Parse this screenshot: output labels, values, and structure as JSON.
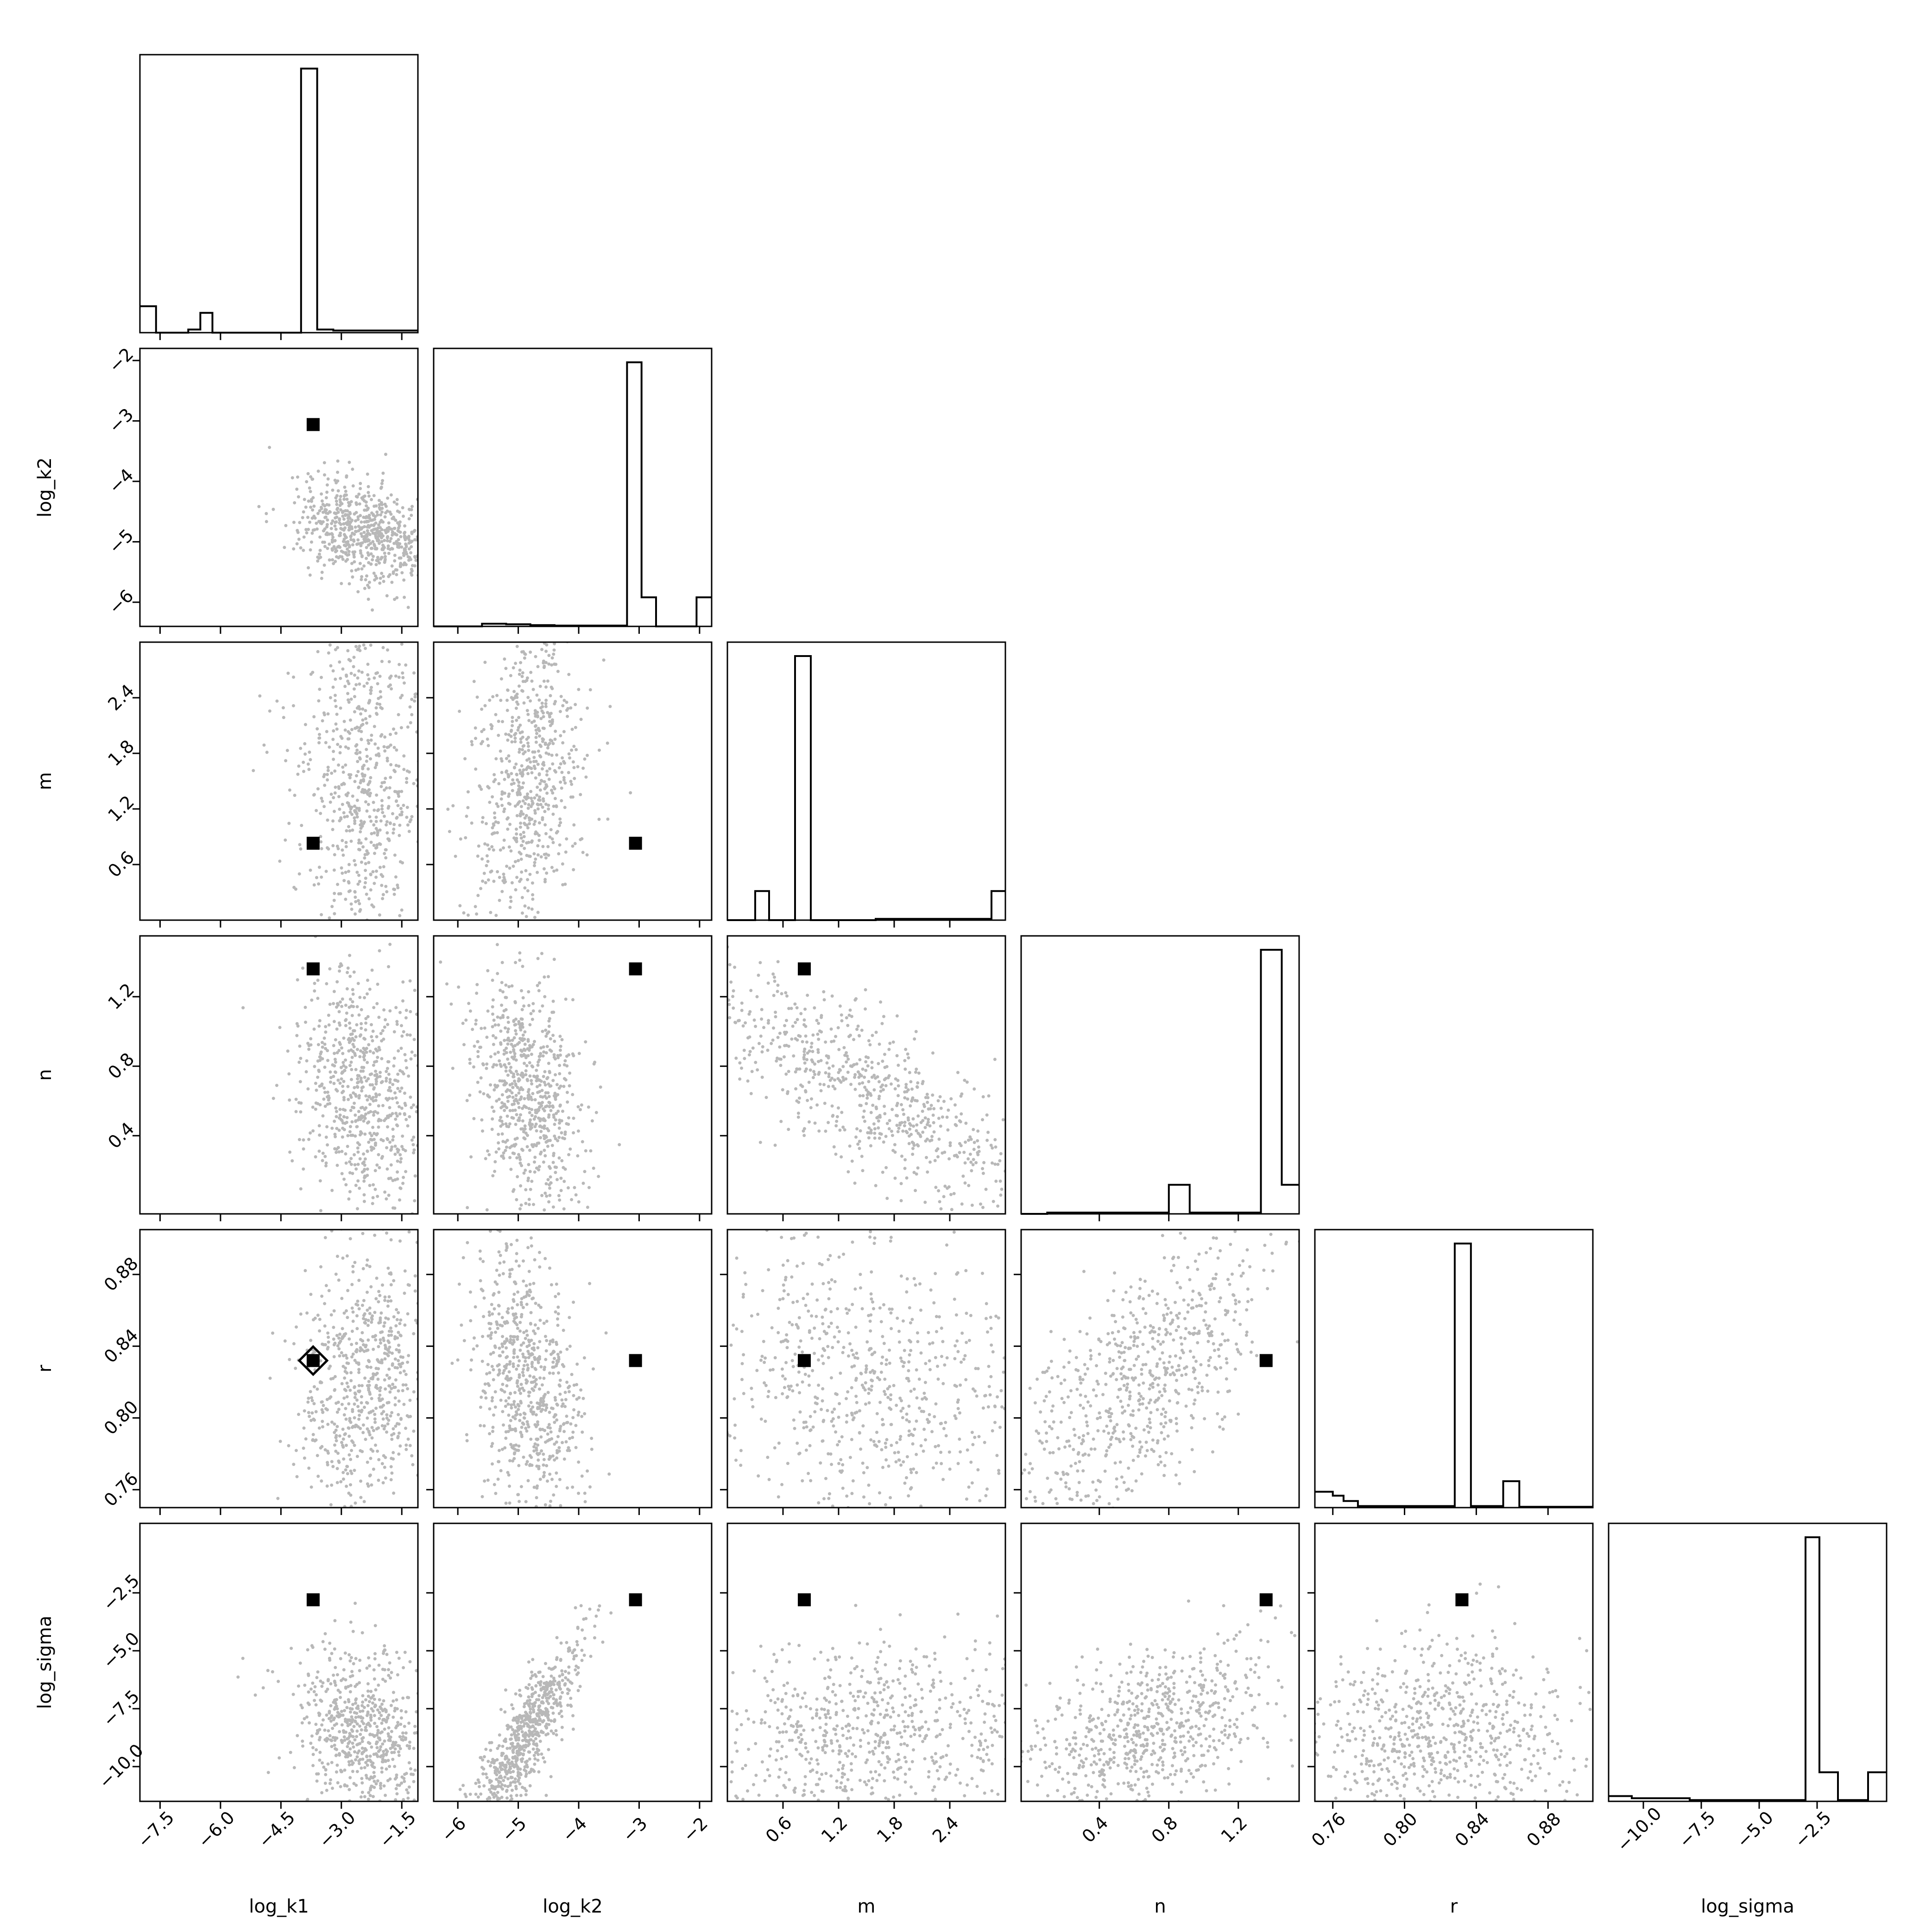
{
  "chart_data": {
    "type": "scatter",
    "subtype": "corner-plot",
    "color": "#000000",
    "parameters": [
      {
        "name": "log_k1",
        "range": [
          -8.0,
          -1.1
        ],
        "ticks": [
          -7.5,
          -6.0,
          -4.5,
          -3.0,
          -1.5
        ],
        "tick_labels": [
          "−7.5",
          "−6.0",
          "−4.5",
          "−3.0",
          "−1.5"
        ],
        "marker": -3.7
      },
      {
        "name": "log_k2",
        "range": [
          -6.4,
          -1.8
        ],
        "ticks": [
          -6,
          -5,
          -4,
          -3,
          -2
        ],
        "tick_labels": [
          "−6",
          "−5",
          "−4",
          "−3",
          "−2"
        ],
        "marker": -3.06
      },
      {
        "name": "m",
        "range": [
          0.0,
          3.0
        ],
        "ticks": [
          0.6,
          1.2,
          1.8,
          2.4
        ],
        "tick_labels": [
          "0.6",
          "1.2",
          "1.8",
          "2.4"
        ],
        "marker": 0.83
      },
      {
        "name": "n",
        "range": [
          -0.05,
          1.55
        ],
        "ticks": [
          0.4,
          0.8,
          1.2
        ],
        "tick_labels": [
          "0.4",
          "0.8",
          "1.2"
        ],
        "marker": 1.36
      },
      {
        "name": "r",
        "range": [
          0.75,
          0.905
        ],
        "ticks": [
          0.76,
          0.8,
          0.84,
          0.88
        ],
        "tick_labels": [
          "0.76",
          "0.80",
          "0.84",
          "0.88"
        ],
        "marker": 0.832
      },
      {
        "name": "log_sigma",
        "range": [
          -11.5,
          0.5
        ],
        "ticks": [
          -10.0,
          -7.5,
          -5.0,
          -2.5
        ],
        "tick_labels": [
          "−10.0",
          "−7.5",
          "−5.0",
          "−2.5"
        ],
        "marker": -2.8
      }
    ],
    "histograms": [
      {
        "parameter": "log_k1",
        "bins": [
          [
            -8.0,
            -7.6,
            0.1
          ],
          [
            -7.6,
            -6.8,
            0
          ],
          [
            -6.8,
            -6.5,
            0.012
          ],
          [
            -6.5,
            -6.2,
            0.075
          ],
          [
            -6.2,
            -4.0,
            0
          ],
          [
            -4.0,
            -3.6,
            1.0
          ],
          [
            -3.6,
            -3.2,
            0.012
          ],
          [
            -3.2,
            -1.1,
            0.008
          ]
        ]
      },
      {
        "parameter": "log_k2",
        "bins": [
          [
            -6.4,
            -5.6,
            0
          ],
          [
            -5.6,
            -5.2,
            0.01
          ],
          [
            -5.2,
            -4.8,
            0.008
          ],
          [
            -4.8,
            -4.4,
            0.005
          ],
          [
            -4.4,
            -3.2,
            0.003
          ],
          [
            -3.2,
            -2.96,
            1.0
          ],
          [
            -2.96,
            -2.72,
            0.11
          ],
          [
            -2.72,
            -2.05,
            0
          ],
          [
            -2.05,
            -1.8,
            0.11
          ]
        ]
      },
      {
        "parameter": "m",
        "bins": [
          [
            0.0,
            0.3,
            0
          ],
          [
            0.3,
            0.45,
            0.11
          ],
          [
            0.45,
            0.73,
            0
          ],
          [
            0.73,
            0.9,
            1.0
          ],
          [
            0.9,
            1.6,
            0
          ],
          [
            1.6,
            2.85,
            0.005
          ],
          [
            2.85,
            3.0,
            0.11
          ]
        ]
      },
      {
        "parameter": "n",
        "bins": [
          [
            -0.05,
            0.1,
            0
          ],
          [
            0.1,
            0.8,
            0.005
          ],
          [
            0.8,
            0.92,
            0.11
          ],
          [
            0.92,
            1.33,
            0.005
          ],
          [
            1.33,
            1.45,
            1.0
          ],
          [
            1.45,
            1.55,
            0.11
          ]
        ]
      },
      {
        "parameter": "r",
        "bins": [
          [
            0.75,
            0.76,
            0.06
          ],
          [
            0.76,
            0.766,
            0.045
          ],
          [
            0.766,
            0.774,
            0.025
          ],
          [
            0.774,
            0.828,
            0.006
          ],
          [
            0.828,
            0.837,
            1.0
          ],
          [
            0.837,
            0.855,
            0.006
          ],
          [
            0.855,
            0.864,
            0.1
          ],
          [
            0.864,
            0.905,
            0.003
          ]
        ]
      },
      {
        "parameter": "log_sigma",
        "bins": [
          [
            -11.5,
            -10.5,
            0.02
          ],
          [
            -10.5,
            -8.0,
            0.012
          ],
          [
            -8.0,
            -3.0,
            0.005
          ],
          [
            -3.0,
            -2.4,
            1.0
          ],
          [
            -2.4,
            -1.6,
            0.11
          ],
          [
            -1.6,
            -0.3,
            0.005
          ],
          [
            -0.3,
            0.5,
            0.11
          ]
        ]
      }
    ]
  }
}
